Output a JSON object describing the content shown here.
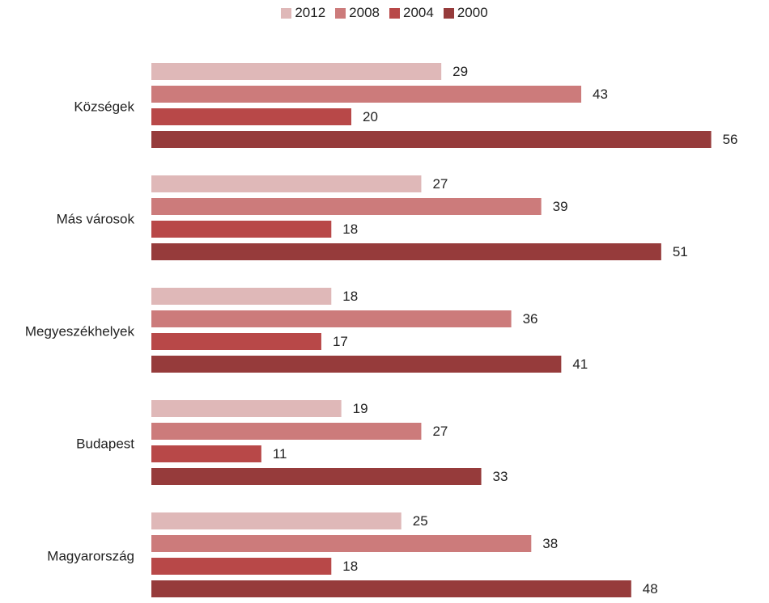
{
  "chart_data": {
    "type": "bar",
    "orientation": "horizontal",
    "title": "",
    "xlabel": "",
    "ylabel": "",
    "xlim": [
      0,
      60
    ],
    "grid": false,
    "legend_position": "top",
    "categories": [
      "Községek",
      "Más városok",
      "Megyeszékhelyek",
      "Budapest",
      "Magyarország"
    ],
    "series": [
      {
        "name": "2012",
        "color": "#dfb8b8",
        "values": [
          29,
          27,
          18,
          19,
          25
        ]
      },
      {
        "name": "2008",
        "color": "#cc7b7b",
        "values": [
          43,
          39,
          36,
          27,
          38
        ]
      },
      {
        "name": "2004",
        "color": "#b84848",
        "values": [
          20,
          18,
          17,
          11,
          18
        ]
      },
      {
        "name": "2000",
        "color": "#963b3b",
        "values": [
          56,
          51,
          41,
          33,
          48
        ]
      }
    ]
  }
}
